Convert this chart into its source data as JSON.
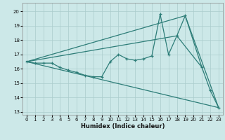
{
  "xlabel": "Humidex (Indice chaleur)",
  "line_color": "#2d7d78",
  "bg_color": "#cce8e8",
  "grid_color": "#aacccc",
  "ylim": [
    12.8,
    20.6
  ],
  "xlim": [
    -0.5,
    23.5
  ],
  "yticks": [
    13,
    14,
    15,
    16,
    17,
    18,
    19,
    20
  ],
  "xticks": [
    0,
    1,
    2,
    3,
    4,
    5,
    6,
    7,
    8,
    9,
    10,
    11,
    12,
    13,
    14,
    15,
    16,
    17,
    18,
    19,
    20,
    21,
    22,
    23
  ],
  "line1_x": [
    0,
    19,
    23
  ],
  "line1_y": [
    16.5,
    19.7,
    13.3
  ],
  "line2_x": [
    0,
    23
  ],
  "line2_y": [
    16.5,
    13.3
  ],
  "line3_x": [
    0,
    18,
    21
  ],
  "line3_y": [
    16.5,
    18.3,
    16.1
  ],
  "main_x": [
    0,
    1,
    2,
    3,
    4,
    5,
    6,
    7,
    8,
    9,
    10,
    11,
    12,
    13,
    14,
    15,
    16,
    17,
    18,
    19,
    21,
    22,
    23
  ],
  "main_y": [
    16.5,
    16.4,
    16.4,
    16.4,
    16.1,
    15.9,
    15.75,
    15.55,
    15.45,
    15.45,
    16.5,
    17.0,
    16.7,
    16.6,
    16.7,
    16.9,
    19.8,
    17.0,
    18.3,
    19.7,
    16.1,
    14.5,
    13.3
  ]
}
